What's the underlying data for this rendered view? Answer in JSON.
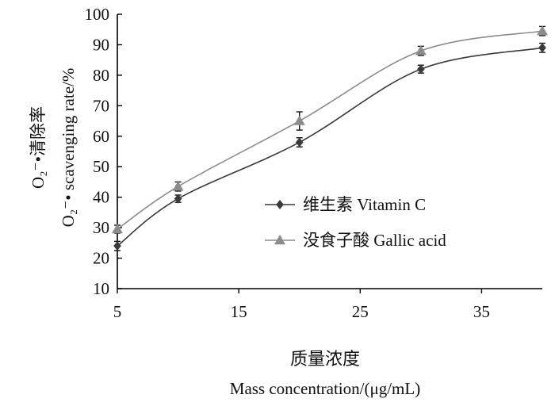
{
  "chart_data": {
    "type": "line",
    "x": [
      5,
      10,
      20,
      30,
      40
    ],
    "series": [
      {
        "name": "维生素 Vitamin C",
        "values": [
          24,
          39.5,
          58,
          82,
          89
        ],
        "errors": [
          1.5,
          1.2,
          1.5,
          1.3,
          1.5
        ],
        "color": "#3a3a3a",
        "marker": "diamond"
      },
      {
        "name": "没食子酸  Gallic acid",
        "values": [
          29.5,
          43.5,
          65,
          88,
          94.5
        ],
        "errors": [
          1.3,
          1.5,
          3.0,
          1.5,
          1.5
        ],
        "color": "#8c8c8c",
        "marker": "triangle"
      }
    ],
    "xlim": [
      5,
      40
    ],
    "ylim": [
      10,
      100
    ],
    "x_ticks": [
      5,
      15,
      25,
      35
    ],
    "y_ticks": [
      10,
      20,
      30,
      40,
      50,
      60,
      70,
      80,
      90,
      100
    ],
    "xlabel_cn": "质量浓度",
    "xlabel_en": "Mass concentration/(μg/mL)",
    "ylabel_cn": "O₂⁻•清除率",
    "ylabel_en": "O₂⁻•  scavenging rate/%",
    "grid": false,
    "legend_position": "center-right"
  }
}
